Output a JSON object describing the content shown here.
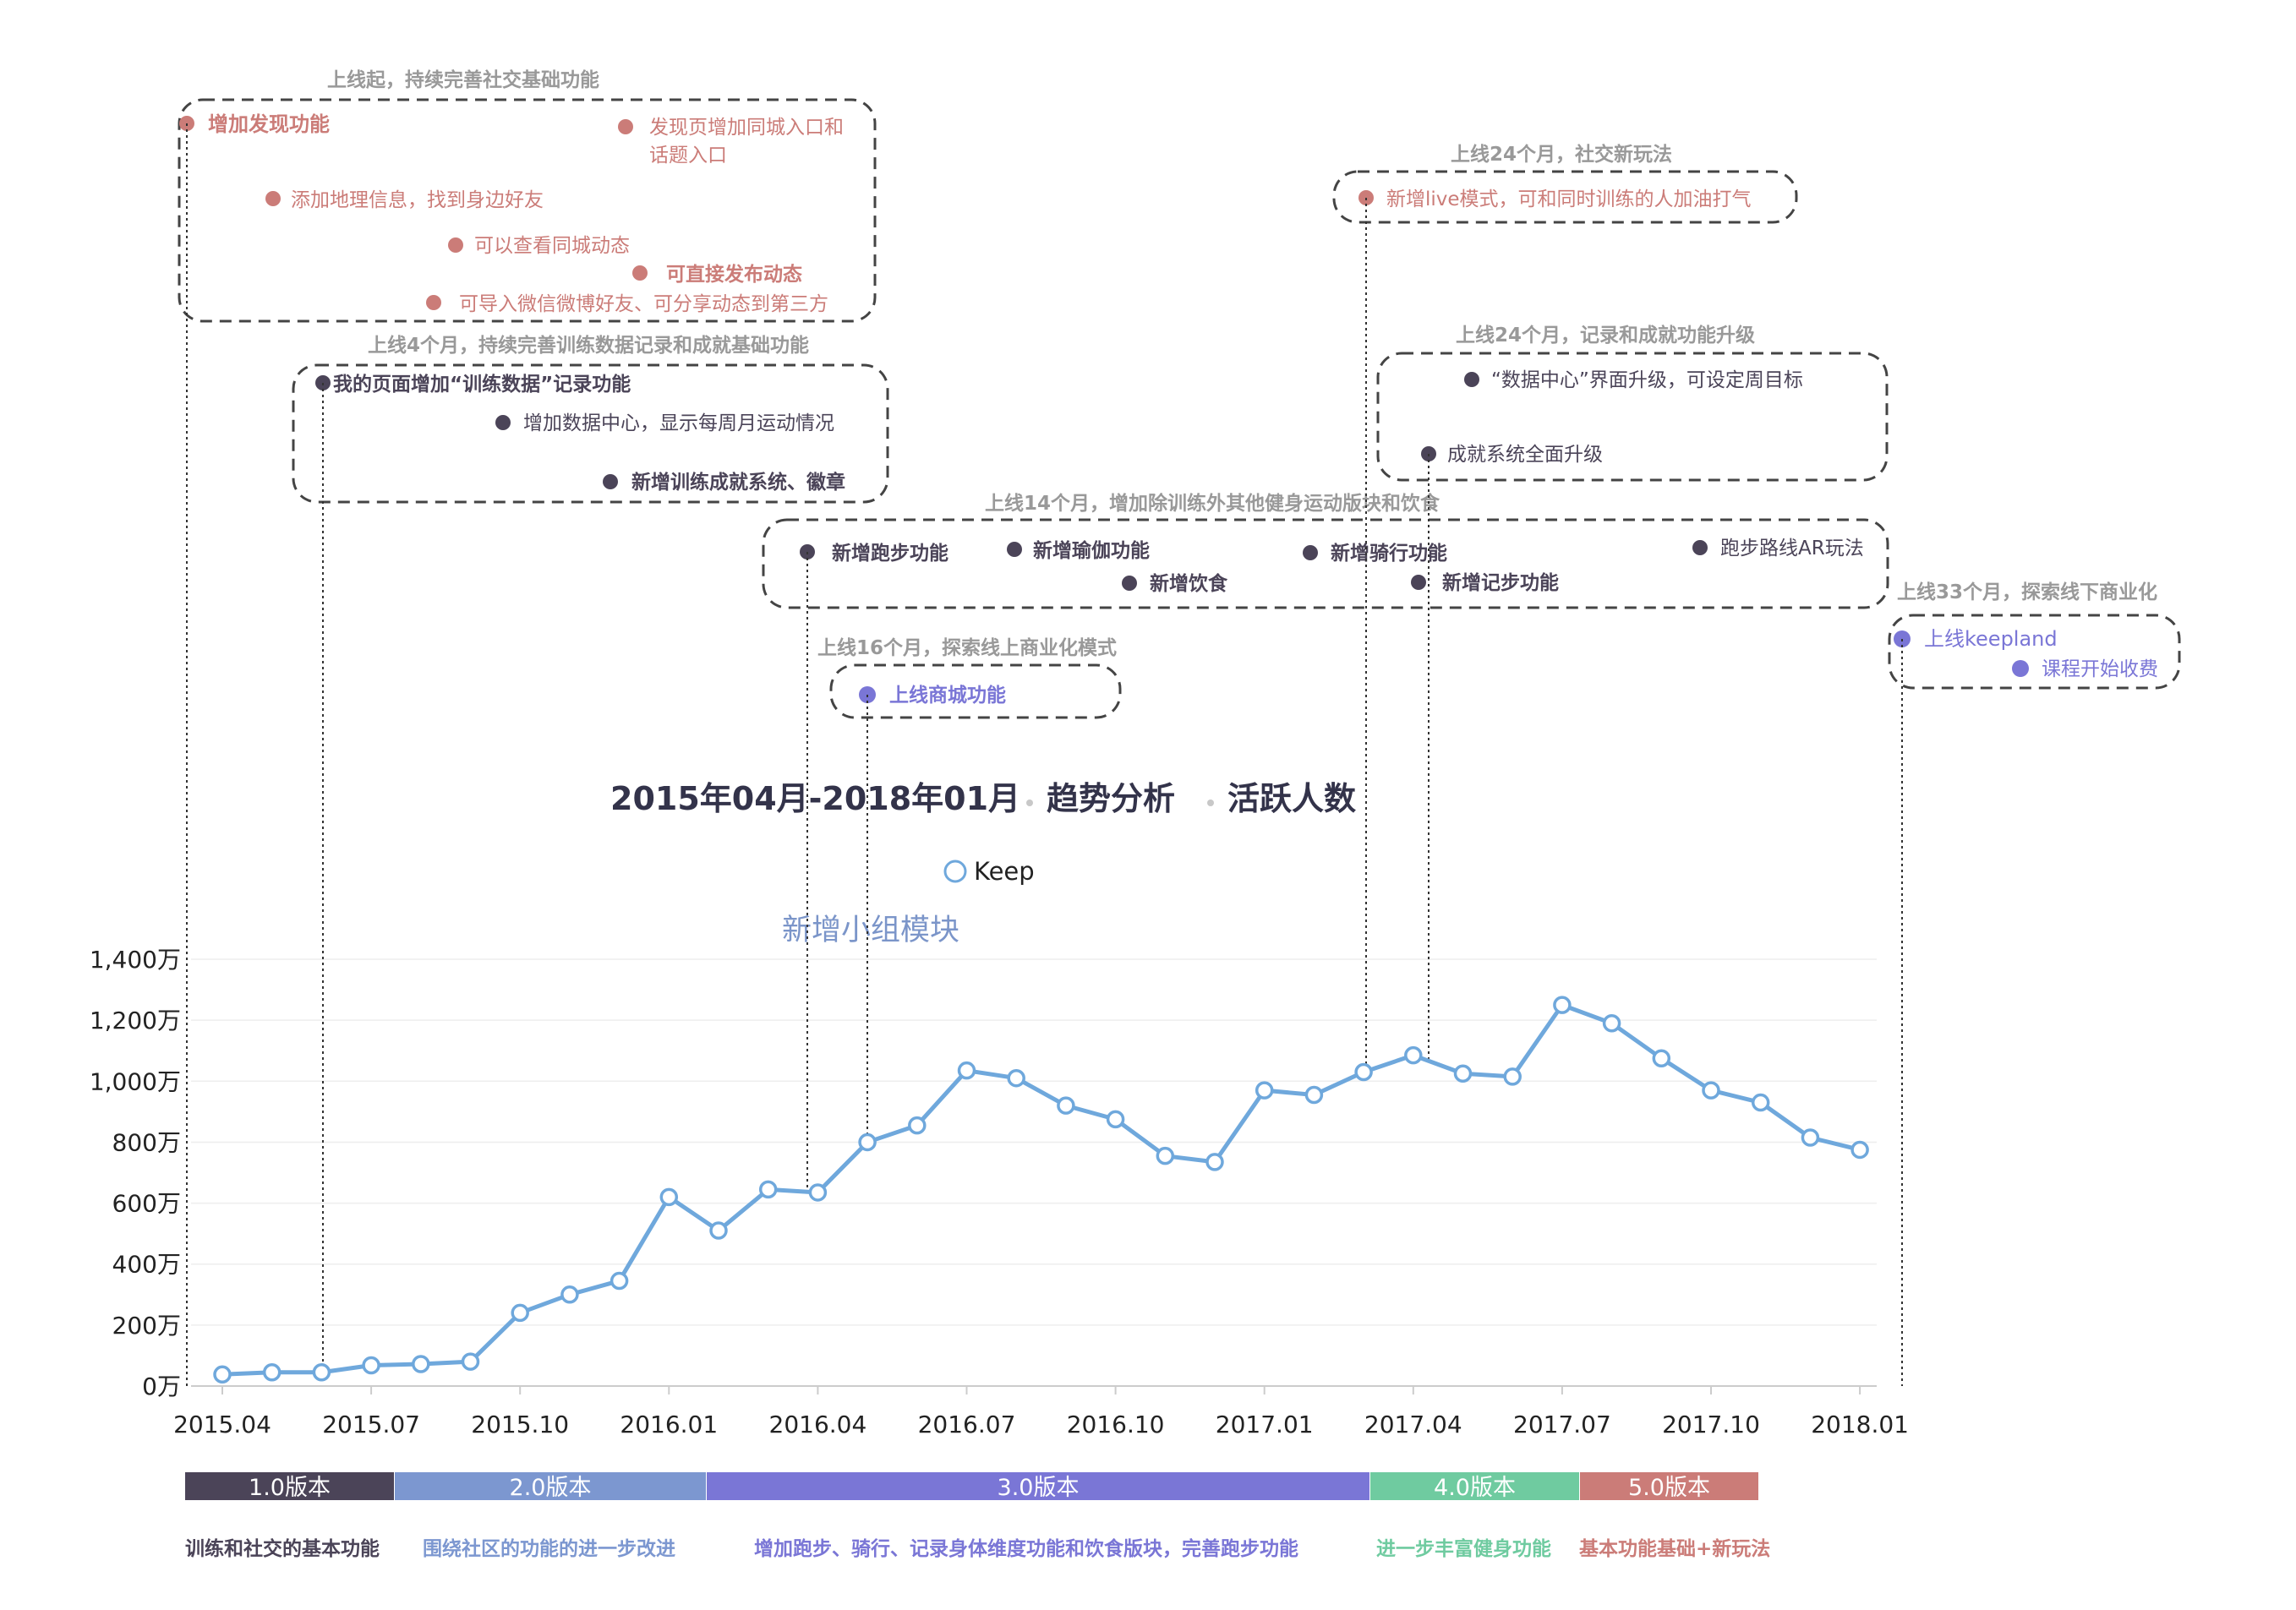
{
  "chart_data": {
    "type": "line",
    "title": "2015年04月-2018年01月",
    "title_parts": [
      "趋势分析",
      "活跃人数"
    ],
    "legend": "Keep",
    "annotation_label": "新增小组模块",
    "y_ticks": [
      "0万",
      "200万",
      "400万",
      "600万",
      "800万",
      "1,000万",
      "1,200万",
      "1,400万"
    ],
    "x_ticks": [
      "2015.04",
      "2015.07",
      "2015.10",
      "2016.01",
      "2016.04",
      "2016.07",
      "2016.10",
      "2017.01",
      "2017.04",
      "2017.07",
      "2017.10",
      "2018.01"
    ],
    "ylim": [
      0,
      1400
    ],
    "series": [
      {
        "name": "Keep",
        "values": [
          38,
          45,
          45,
          68,
          72,
          80,
          240,
          300,
          345,
          620,
          510,
          645,
          635,
          800,
          855,
          1035,
          1010,
          920,
          875,
          755,
          735,
          970,
          955,
          1030,
          1085,
          1025,
          1015,
          1250,
          1190,
          1075,
          970,
          930,
          815,
          775
        ]
      }
    ]
  },
  "versions": [
    {
      "label": "1.0版本",
      "desc": "训练和社交的基本功能",
      "color": "#4b4458"
    },
    {
      "label": "2.0版本",
      "desc": "围绕社区的功能的进一步改进",
      "color": "#7c97d0"
    },
    {
      "label": "3.0版本",
      "desc": "增加跑步、骑行、记录身体维度功能和饮食版块，完善跑步功能",
      "color": "#7a76d6"
    },
    {
      "label": "4.0版本",
      "desc": "进一步丰富健身功能",
      "color": "#6fcba0"
    },
    {
      "label": "5.0版本",
      "desc": "基本功能基础+新玩法",
      "color": "#cb7c78"
    }
  ],
  "groups": [
    {
      "title": "上线起，持续完善社交基础功能",
      "items": [
        {
          "text": "增加发现功能",
          "bold": true
        },
        {
          "text": "添加地理信息，找到身边好友",
          "bold": false
        },
        {
          "text": "可以查看同城动态",
          "bold": false
        },
        {
          "text": "可导入微信微博好友、可分享动态到第三方",
          "bold": false
        },
        {
          "text": "可直接发布动态",
          "bold": true
        },
        {
          "text": "发现页增加同城入口和",
          "bold": false
        },
        {
          "text": "话题入口",
          "bold": false
        }
      ]
    },
    {
      "title": "上线4个月，持续完善训练数据记录和成就基础功能",
      "items": [
        {
          "text": "我的页面增加“训练数据”记录功能",
          "bold": true
        },
        {
          "text": "增加数据中心，显示每周月运动情况",
          "bold": false
        },
        {
          "text": "新增训练成就系统、徽章",
          "bold": true
        }
      ]
    },
    {
      "title": "上线14个月，增加除训练外其他健身运动版块和饮食",
      "items": [
        {
          "text": "新增跑步功能",
          "bold": true
        },
        {
          "text": "新增瑜伽功能",
          "bold": true
        },
        {
          "text": "新增饮食",
          "bold": true
        },
        {
          "text": "新增骑行功能",
          "bold": true
        },
        {
          "text": "新增记步功能",
          "bold": true
        },
        {
          "text": "跑步路线AR玩法",
          "bold": false
        }
      ]
    },
    {
      "title": "上线16个月，探索线上商业化模式",
      "items": [
        {
          "text": "上线商城功能",
          "bold": true
        }
      ]
    },
    {
      "title": "上线24个月，社交新玩法",
      "items": [
        {
          "text": "新增live模式，可和同时训练的人加油打气",
          "bold": false
        }
      ]
    },
    {
      "title": "上线24个月，记录和成就功能升级",
      "items": [
        {
          "text": "“数据中心”界面升级，可设定周目标",
          "bold": false
        },
        {
          "text": "成就系统全面升级",
          "bold": false
        }
      ]
    },
    {
      "title": "上线33个月，探索线下商业化",
      "items": [
        {
          "text": "上线keepland",
          "bold": false
        },
        {
          "text": "课程开始收费",
          "bold": false
        }
      ]
    }
  ],
  "colors": {
    "line": "#6fa8dc",
    "social": "#cb7c78",
    "training": "#4b4458",
    "commerce": "#7a76d6",
    "group_title": "#999999",
    "axis_text": "#222222",
    "grid": "#eeeeee"
  }
}
